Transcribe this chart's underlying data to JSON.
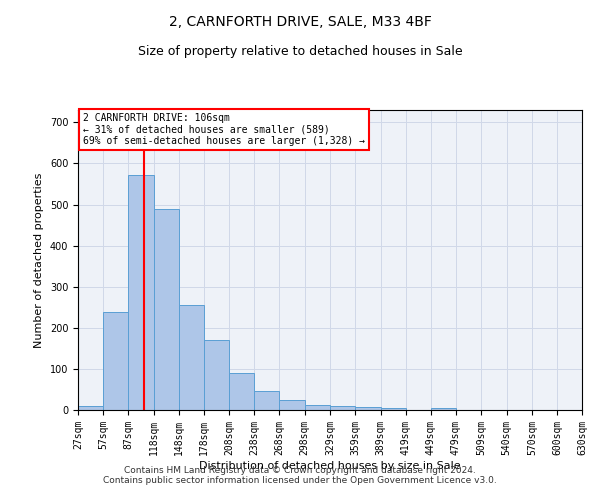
{
  "title": "2, CARNFORTH DRIVE, SALE, M33 4BF",
  "subtitle": "Size of property relative to detached houses in Sale",
  "xlabel": "Distribution of detached houses by size in Sale",
  "ylabel": "Number of detached properties",
  "footer_line1": "Contains HM Land Registry data © Crown copyright and database right 2024.",
  "footer_line2": "Contains public sector information licensed under the Open Government Licence v3.0.",
  "annotation_line1": "2 CARNFORTH DRIVE: 106sqm",
  "annotation_line2": "← 31% of detached houses are smaller (589)",
  "annotation_line3": "69% of semi-detached houses are larger (1,328) →",
  "property_size_sqm": 106,
  "bin_edges": [
    27,
    57,
    87,
    118,
    148,
    178,
    208,
    238,
    268,
    298,
    329,
    359,
    389,
    419,
    449,
    479,
    509,
    540,
    570,
    600,
    630
  ],
  "bin_labels": [
    "27sqm",
    "57sqm",
    "87sqm",
    "118sqm",
    "148sqm",
    "178sqm",
    "208sqm",
    "238sqm",
    "268sqm",
    "298sqm",
    "329sqm",
    "359sqm",
    "389sqm",
    "419sqm",
    "449sqm",
    "479sqm",
    "509sqm",
    "540sqm",
    "570sqm",
    "600sqm",
    "630sqm"
  ],
  "bar_heights": [
    10,
    238,
    573,
    490,
    255,
    170,
    90,
    47,
    25,
    12,
    10,
    8,
    5,
    0,
    5,
    0,
    0,
    0,
    0,
    0
  ],
  "bar_color": "#aec6e8",
  "bar_edge_color": "#5a9fd4",
  "vline_x": 106,
  "vline_color": "red",
  "ylim": [
    0,
    730
  ],
  "yticks": [
    0,
    100,
    200,
    300,
    400,
    500,
    600,
    700
  ],
  "grid_color": "#d0d8e8",
  "background_color": "#eef2f8",
  "annotation_box_edge_color": "red",
  "annotation_box_face_color": "white",
  "title_fontsize": 10,
  "subtitle_fontsize": 9,
  "label_fontsize": 8,
  "tick_fontsize": 7,
  "footer_fontsize": 6.5,
  "annotation_fontsize": 7
}
